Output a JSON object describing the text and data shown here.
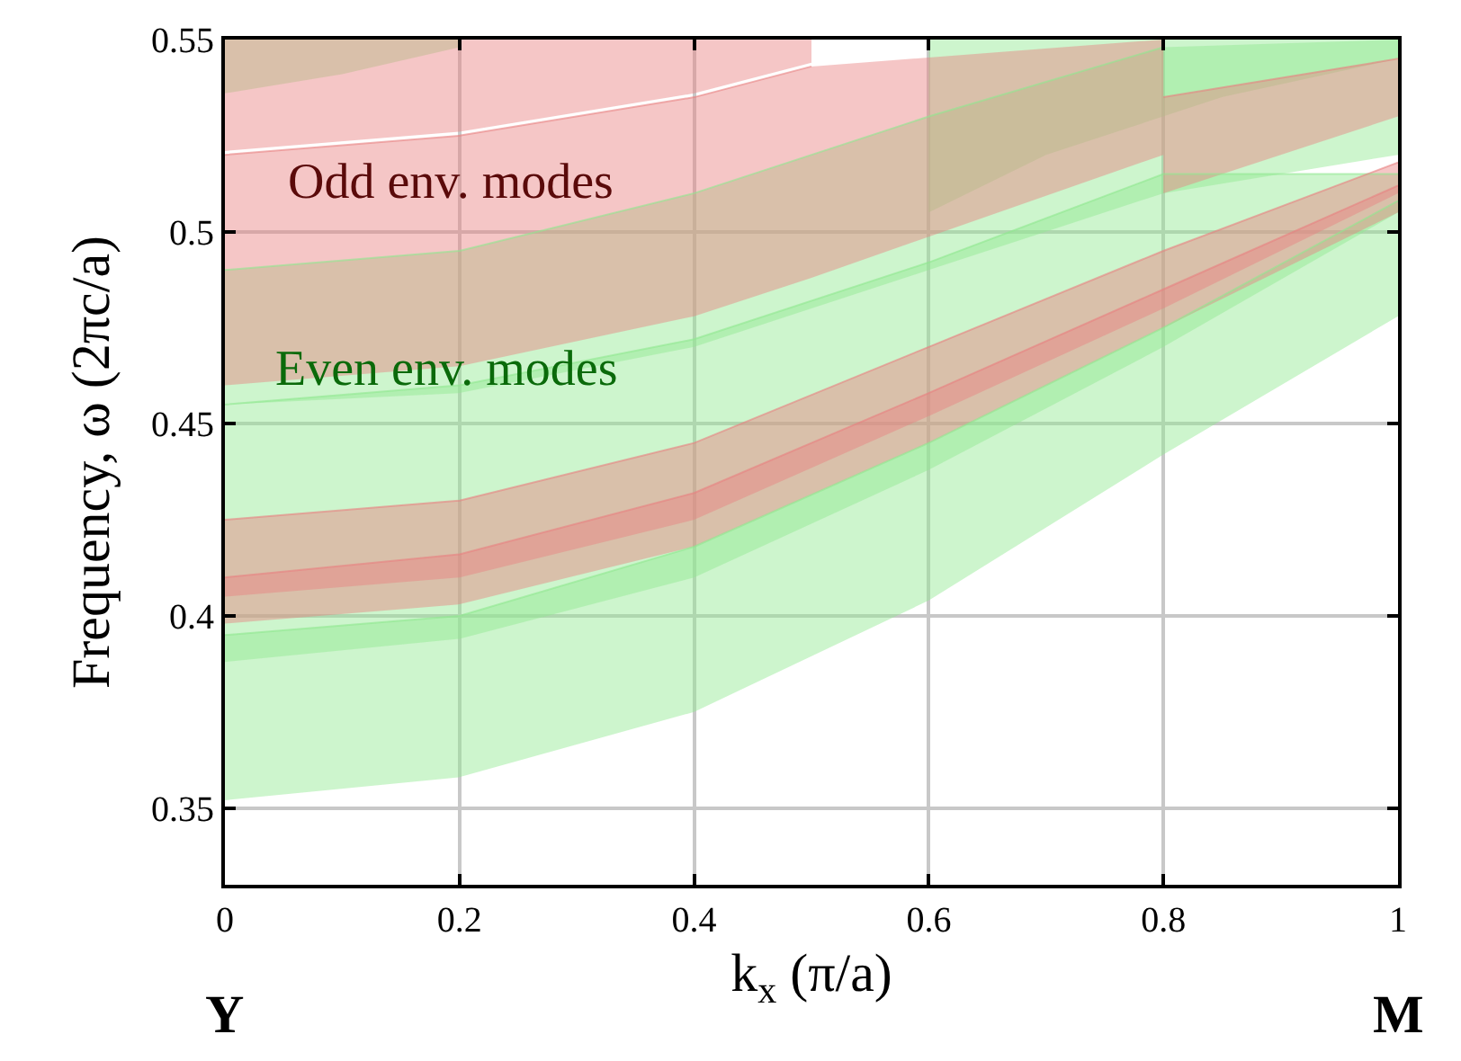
{
  "chart_data": {
    "type": "line",
    "xlabel": "k$_{x}$ (π/a)",
    "ylabel": "Frequency, ω (2πc/a)",
    "x": [
      0,
      0.2,
      0.4,
      0.6,
      0.8,
      1
    ],
    "series": [
      {
        "color": "#90e890",
        "values": [
          0.395,
          0.4,
          0.418,
          0.445,
          0.475,
          0.508
        ],
        "upper": [
          0.395,
          0.4,
          0.418,
          0.445,
          0.475,
          0.508
        ],
        "lower": [
          0.352,
          0.358,
          0.375,
          0.404,
          0.442,
          0.478
        ]
      },
      {
        "color": "#90e890",
        "values": [
          0.455,
          0.46,
          0.472,
          0.492,
          0.515,
          0.515
        ],
        "upper": [
          0.455,
          0.46,
          0.472,
          0.492,
          0.515,
          0.515
        ],
        "lower": [
          0.388,
          0.394,
          0.41,
          0.438,
          0.47,
          0.505
        ]
      },
      {
        "color": "#90e890",
        "values": [
          0.49,
          0.495,
          0.51,
          0.53,
          0.548,
          null
        ],
        "upper": [
          0.49,
          0.495,
          0.51,
          0.53,
          0.548,
          0.55
        ],
        "lower": [
          0.455,
          0.458,
          0.47,
          0.49,
          0.51,
          0.52
        ]
      },
      {
        "color": "#90e890",
        "x": [
          0,
          0.1,
          0.2
        ],
        "values": [
          null,
          null,
          null
        ],
        "upper": [
          0.55,
          0.55,
          0.55
        ],
        "lower": [
          0.536,
          0.541,
          0.548
        ]
      },
      {
        "color": "#90e890",
        "x": [
          0.6,
          0.7,
          0.85,
          1
        ],
        "values": [
          null,
          null,
          null,
          null
        ],
        "upper": [
          0.55,
          0.55,
          0.55,
          0.55
        ],
        "lower": [
          0.505,
          0.52,
          0.535,
          0.545
        ]
      },
      {
        "color": "#e88080",
        "values": [
          0.41,
          0.416,
          0.432,
          0.458,
          0.485,
          0.512
        ],
        "upper": [
          0.41,
          0.416,
          0.432,
          0.458,
          0.485,
          0.512
        ],
        "lower": [
          0.398,
          0.403,
          0.418,
          0.445,
          0.475,
          0.505
        ]
      },
      {
        "color": "#e88080",
        "values": [
          0.425,
          0.43,
          0.445,
          0.47,
          0.495,
          0.518
        ],
        "upper": [
          0.425,
          0.43,
          0.445,
          0.47,
          0.495,
          0.518
        ],
        "lower": [
          0.405,
          0.41,
          0.425,
          0.452,
          0.48,
          0.51
        ]
      },
      {
        "color": "#e88080",
        "x": [
          0,
          0.2,
          0.4,
          0.5,
          0.8
        ],
        "values": [
          0.52,
          0.525,
          0.535,
          0.543,
          null
        ],
        "upper": [
          0.52,
          0.525,
          0.535,
          0.543,
          0.55
        ],
        "lower": [
          0.46,
          0.465,
          0.478,
          0.488,
          0.52
        ]
      },
      {
        "color": "#e88080",
        "x": [
          0,
          0.2,
          0.4,
          0.5
        ],
        "values": [
          null,
          null,
          null,
          null
        ],
        "upper": [
          0.55,
          0.55,
          0.55,
          0.55
        ],
        "lower": [
          0.521,
          0.526,
          0.536,
          0.544
        ]
      },
      {
        "color": "#e88080",
        "x": [
          0.8,
          0.9,
          1
        ],
        "values": [
          0.535,
          0.54,
          0.545
        ],
        "upper": [
          0.535,
          0.54,
          0.545
        ],
        "lower": [
          0.51,
          0.52,
          0.53
        ]
      }
    ],
    "annotations": [
      "Odd env. modes",
      "Even env. modes",
      "Y",
      "M"
    ],
    "xlim": [
      0,
      1
    ],
    "xticks": [
      0,
      0.2,
      0.4,
      0.6,
      0.8,
      1
    ],
    "ylim": [
      0.33,
      0.55
    ],
    "yticks": [
      0.35,
      0.4,
      0.45,
      0.5,
      0.55
    ],
    "grid": true
  }
}
